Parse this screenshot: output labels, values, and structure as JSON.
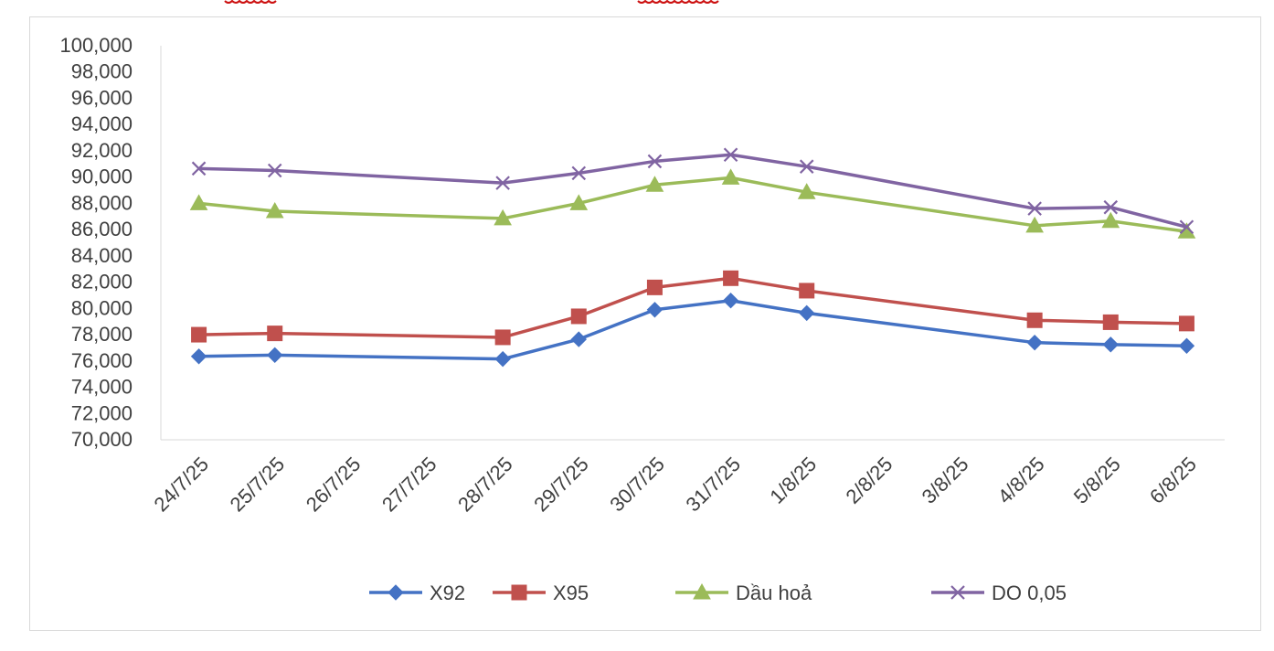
{
  "chart_data": {
    "type": "line",
    "title": "",
    "xlabel": "",
    "ylabel": "",
    "categories": [
      "24/7/25",
      "25/7/25",
      "26/7/25",
      "27/7/25",
      "28/7/25",
      "29/7/25",
      "30/7/25",
      "31/7/25",
      "1/8/25",
      "2/8/25",
      "3/8/25",
      "4/8/25",
      "5/8/25",
      "6/8/25"
    ],
    "ylim": [
      70000,
      100000
    ],
    "yticks": [
      "70,000",
      "72,000",
      "74,000",
      "76,000",
      "78,000",
      "80,000",
      "82,000",
      "84,000",
      "86,000",
      "88,000",
      "90,000",
      "92,000",
      "94,000",
      "96,000",
      "98,000",
      "100,000"
    ],
    "grid": false,
    "legend_position": "bottom",
    "series": [
      {
        "name": "X92",
        "color": "#4472C4",
        "marker": "diamond",
        "values": [
          76350,
          76450,
          null,
          null,
          76150,
          77650,
          79900,
          80600,
          79650,
          null,
          null,
          77400,
          77250,
          77150
        ]
      },
      {
        "name": "X95",
        "color": "#C0504D",
        "marker": "square",
        "values": [
          78000,
          78100,
          null,
          null,
          77800,
          79400,
          81600,
          82300,
          81350,
          null,
          null,
          79100,
          78950,
          78850
        ]
      },
      {
        "name": "Dầu hoả",
        "color": "#9BBB59",
        "marker": "triangle",
        "values": [
          88000,
          87400,
          null,
          null,
          86850,
          88000,
          89400,
          89950,
          88850,
          null,
          null,
          86300,
          86650,
          85850
        ]
      },
      {
        "name": "DO 0,05",
        "color": "#8064A2",
        "marker": "x",
        "values": [
          90650,
          90500,
          null,
          null,
          89550,
          90300,
          91200,
          91700,
          90800,
          null,
          null,
          87600,
          87700,
          86200
        ]
      }
    ]
  }
}
